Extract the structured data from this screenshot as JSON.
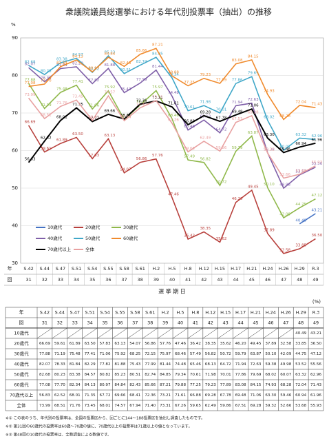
{
  "chart_data": {
    "type": "line",
    "title": "衆議院議員総選挙における年代別投票率（抽出）の推移",
    "yunit": "%",
    "xlabel": "選 挙 期 日",
    "year_header": "年",
    "round_header": "回",
    "categories": [
      "S.42",
      "S.44",
      "S.47",
      "S.51",
      "S.54",
      "S.55",
      "S.58",
      "S.61",
      "H.2",
      "H.5",
      "H.8",
      "H.12",
      "H.15",
      "H.17",
      "H.21",
      "H.24",
      "H.26",
      "H.29",
      "R.3"
    ],
    "rounds": [
      31,
      32,
      33,
      34,
      35,
      36,
      37,
      38,
      39,
      40,
      41,
      42,
      43,
      44,
      45,
      46,
      47,
      48,
      49
    ],
    "ylim": [
      30,
      90
    ],
    "yticks": [
      30,
      40,
      50,
      60,
      70,
      80,
      90
    ],
    "grid": true,
    "series": [
      {
        "name": "10歳代",
        "color": "#4472c4",
        "values": [
          null,
          null,
          null,
          null,
          null,
          null,
          null,
          null,
          null,
          null,
          null,
          null,
          null,
          null,
          null,
          null,
          null,
          40.49,
          43.21
        ],
        "value_labels": [
          null,
          null,
          null,
          null,
          null,
          null,
          null,
          null,
          null,
          null,
          null,
          null,
          null,
          null,
          null,
          null,
          null,
          "40.49",
          "43.21"
        ]
      },
      {
        "name": "20歳代",
        "color": "#b8403c",
        "values": [
          66.69,
          59.61,
          61.89,
          63.5,
          57.83,
          63.13,
          54.07,
          56.86,
          57.76,
          47.46,
          36.42,
          38.35,
          35.62,
          46.2,
          49.45,
          37.89,
          32.58,
          33.85,
          36.5
        ],
        "value_labels": [
          "66.69",
          "59.61",
          "61.89",
          "63.50",
          "57.83",
          "63.13",
          "54.07",
          "56.86",
          "57.76",
          "47.46",
          "36.42",
          "38.35",
          "35.62",
          "46.20",
          "49.45",
          "37.89",
          "32.58",
          "33.85",
          "36.50"
        ]
      },
      {
        "name": "30歳代",
        "color": "#8fb84a",
        "values": [
          77.88,
          71.19,
          75.48,
          77.41,
          71.06,
          75.92,
          68.25,
          72.15,
          75.97,
          68.46,
          57.49,
          56.82,
          50.72,
          59.79,
          63.87,
          50.1,
          42.09,
          44.75,
          47.12
        ],
        "value_labels": [
          "77.88",
          "71.19",
          "75.48",
          "77.41",
          "71.06",
          "75.92",
          "68.25",
          "72.15",
          "75.97",
          "68.46",
          "57.49",
          "56.82",
          "50.72",
          "59.79",
          "63.87",
          "50.10",
          "42.09",
          "44.75",
          "47.12"
        ]
      },
      {
        "name": "40歳代",
        "color": "#7f5fa8",
        "values": [
          82.07,
          78.33,
          81.84,
          82.29,
          77.82,
          81.88,
          75.43,
          77.99,
          81.44,
          74.48,
          65.46,
          68.13,
          64.72,
          71.94,
          72.63,
          59.38,
          49.98,
          53.52,
          55.56
        ],
        "value_labels": [
          "82.07",
          "78.33",
          "81.84",
          "82.29",
          "77.82",
          "81.88",
          "75.43",
          "77.99",
          "81.44",
          "74.48",
          "65.46",
          "68.13",
          "64.72",
          "71.94",
          "72.63",
          "59.38",
          "49.98",
          "53.52",
          "55.56"
        ]
      },
      {
        "name": "50歳代",
        "color": "#3fa7c8",
        "values": [
          82.68,
          80.23,
          83.38,
          84.57,
          80.82,
          85.23,
          80.51,
          82.74,
          84.85,
          79.34,
          70.61,
          71.98,
          70.01,
          77.86,
          79.69,
          68.02,
          60.07,
          63.32,
          62.96
        ],
        "value_labels": [
          "82.68",
          "80.23",
          "83.38",
          "84.57",
          "80.82",
          "85.23",
          "80.51",
          "82.74",
          "84.85",
          "79.34",
          "70.61",
          "71.98",
          "70.01",
          "77.86",
          "79.69",
          "68.02",
          "60.07",
          "63.32",
          "62.96"
        ]
      },
      {
        "name": "60歳代",
        "color": "#f08a2c",
        "values": [
          77.08,
          77.7,
          82.34,
          84.13,
          80.97,
          84.84,
          82.43,
          85.66,
          87.21,
          79.88,
          77.25,
          79.23,
          77.89,
          83.08,
          84.15,
          74.93,
          68.28,
          72.04,
          71.43
        ],
        "value_labels": [
          "77.08",
          "77.70",
          "82.34",
          "84.13",
          "80.97",
          "84.84",
          "82.43",
          "85.66",
          "87.21",
          "79.88",
          "77.25",
          "79.23",
          "77.89",
          "83.08",
          "84.15",
          "74.93",
          "68.28",
          "72.04",
          "71.43"
        ]
      },
      {
        "name": "70歳代以上",
        "color": "#000000",
        "values": [
          56.83,
          62.52,
          68.01,
          71.35,
          67.72,
          69.66,
          68.41,
          72.36,
          73.21,
          71.61,
          66.88,
          69.28,
          67.78,
          69.48,
          71.06,
          63.3,
          59.46,
          60.94,
          61.96
        ],
        "value_labels": [
          "56.83",
          "62.52",
          "68.01",
          "71.35",
          "67.72",
          "69.66",
          "68.41",
          "72.36",
          "73.21",
          "71.61",
          "66.88",
          "69.28",
          "67.78",
          "69.48",
          "71.06",
          "63.30",
          "59.46",
          "60.94",
          "61.96"
        ]
      },
      {
        "name": "全体",
        "color": "#e8a0a0",
        "values": [
          73.99,
          68.51,
          71.76,
          73.45,
          68.01,
          74.57,
          67.94,
          71.4,
          73.31,
          67.26,
          59.65,
          62.49,
          59.86,
          67.51,
          69.28,
          59.32,
          52.66,
          53.68,
          55.93
        ],
        "value_labels": [
          "73.99",
          "68.51",
          "71.76",
          "73.45",
          "68.01",
          "74.57",
          "67.94",
          "71.40",
          "73.31",
          "67.26",
          "59.65",
          "62.49",
          "59.86",
          "67.51",
          "69.28",
          "59.32",
          "52.66",
          "53.68",
          "55.93"
        ]
      }
    ]
  },
  "table": {
    "unit": "(%)"
  },
  "notes": [
    "※① この表のうち、年代別の投票率は、全国の投票区から、回ごとに144〜188投票区を抽出し調査したものです。",
    "※② 第31回の60歳代の投票率は60歳〜70歳の値に、70歳代以上の投票率は71歳以上の値となっています。",
    "※③ 第48回の10歳代の投票率は、全数調査による数値です。"
  ]
}
